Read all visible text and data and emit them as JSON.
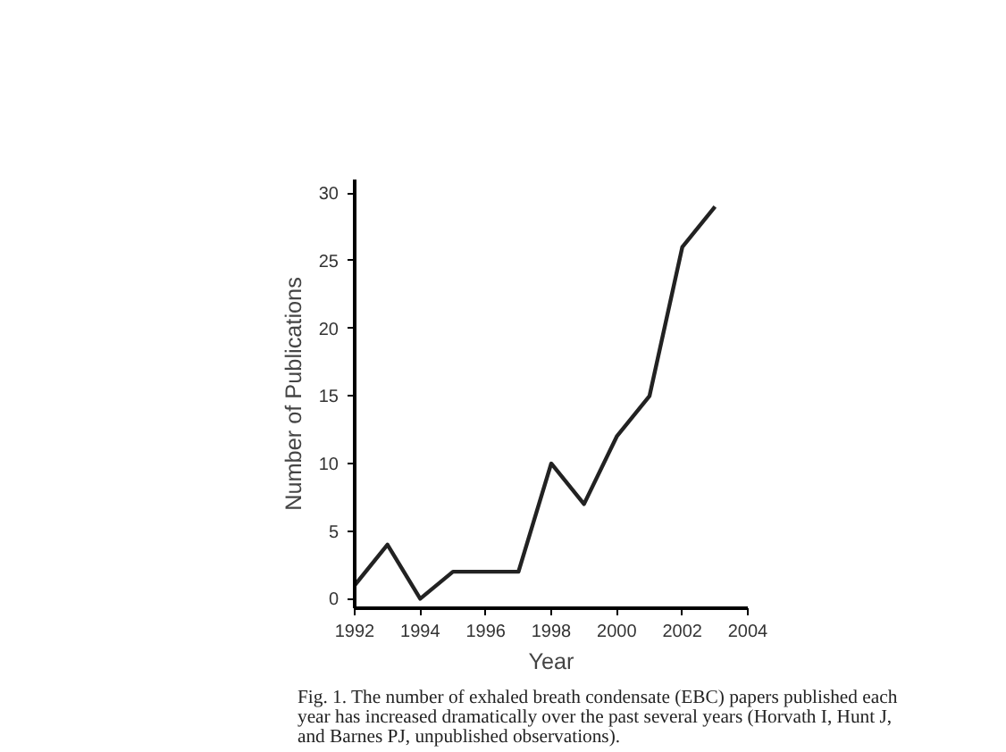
{
  "chart_data": {
    "type": "line",
    "xlabel": "Year",
    "ylabel": "Number of Publications",
    "x": [
      1992,
      1993,
      1994,
      1995,
      1996,
      1997,
      1998,
      1999,
      2000,
      2001,
      2002,
      2003
    ],
    "series": [
      {
        "color": "#222222",
        "values": [
          1,
          4,
          0,
          2,
          2,
          2,
          10,
          7,
          12,
          15,
          26,
          29
        ]
      }
    ],
    "xlim": [
      1992,
      2004
    ],
    "ylim": [
      -0.7,
      31
    ],
    "xticks": [
      1992,
      1994,
      1996,
      1998,
      2000,
      2002,
      2004
    ],
    "yticks": [
      0,
      5,
      10,
      15,
      20,
      25,
      30
    ],
    "grid": false,
    "marker": "none",
    "line_style": "solid",
    "annotations": [
      "Fig. 1.  The number of exhaled breath condensate (EBC) papers published each\nyear has increased dramatically over the past several years (Horvath I, Hunt J,\nand Barnes PJ, unpublished observations)."
    ]
  }
}
